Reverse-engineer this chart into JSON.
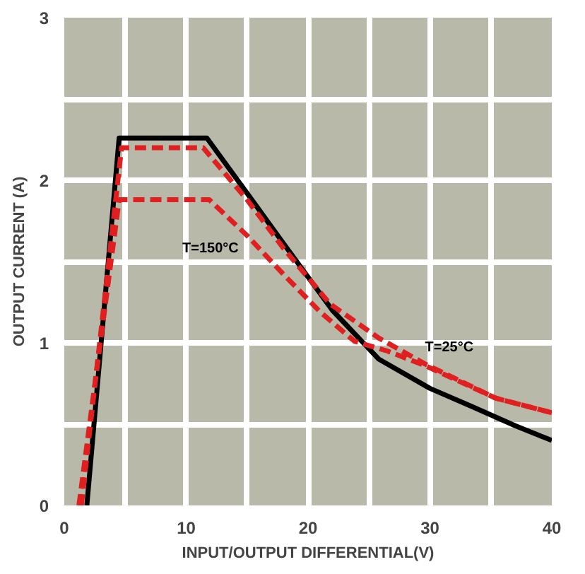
{
  "chart_data": {
    "type": "line",
    "xlabel": "INPUT/OUTPUT DIFFERENTIAL(V)",
    "ylabel": "OUTPUT CURRENT (A)",
    "xlim": [
      0,
      40
    ],
    "ylim": [
      0,
      3
    ],
    "xticks": [
      0,
      {
        "value": 5,
        "label": null
      },
      10,
      {
        "value": 15,
        "label": null
      },
      20,
      {
        "value": 25,
        "label": null
      },
      30,
      {
        "value": 35,
        "label": null
      },
      40
    ],
    "yticks": [
      0,
      {
        "value": 0.5,
        "label": null
      },
      1,
      {
        "value": 1.5,
        "label": null
      },
      2,
      {
        "value": 2.5,
        "label": null
      },
      3
    ],
    "grid": true,
    "series": [
      {
        "color": "#000000",
        "line_style": "solid",
        "x": [
          1.85,
          4.5,
          11.7,
          15,
          18,
          22,
          25.8,
          30,
          33.4,
          37,
          40
        ],
        "values": [
          0,
          2.26,
          2.26,
          1.92,
          1.61,
          1.2,
          0.9,
          0.72,
          0.61,
          0.49,
          0.4
        ]
      },
      {
        "name": "T=25°C",
        "color": "#e02020",
        "line_style": "dashed",
        "x": [
          1.4,
          4.7,
          11.4,
          15,
          18,
          21.8,
          25.8,
          29.6,
          35.4,
          40
        ],
        "values": [
          0,
          2.2,
          2.2,
          1.88,
          1.58,
          1.24,
          1.03,
          0.87,
          0.66,
          0.57
        ]
      },
      {
        "name": "T=150°C",
        "color": "#e02020",
        "line_style": "dashed",
        "x": [
          1.2,
          4.5,
          11.9,
          15,
          18,
          21,
          23.8,
          26.5,
          29.6,
          35.4,
          40
        ],
        "values": [
          0,
          1.88,
          1.88,
          1.66,
          1.42,
          1.19,
          1.01,
          0.95,
          0.86,
          0.66,
          0.57
        ]
      }
    ]
  }
}
